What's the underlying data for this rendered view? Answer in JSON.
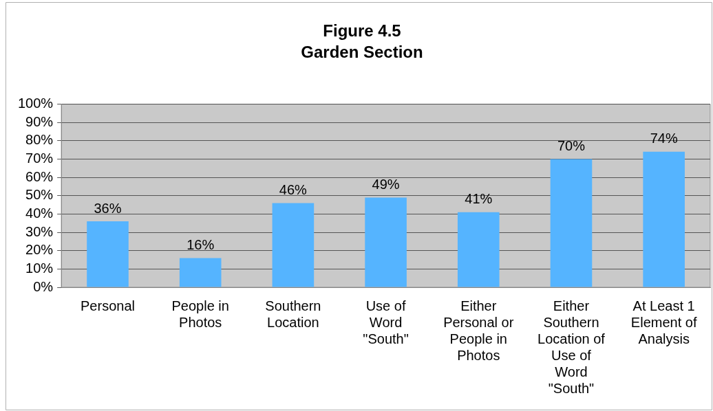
{
  "chart_data": {
    "type": "bar",
    "title": "Figure 4.5",
    "subtitle": "Garden Section",
    "categories": [
      "Personal",
      "People in Photos",
      "Southern Location",
      "Use of Word \"South\"",
      "Either Personal or People in Photos",
      "Either Southern Location of Use of Word \"South\"",
      "At Least 1 Element of Analysis"
    ],
    "values": [
      36,
      16,
      46,
      49,
      41,
      70,
      74
    ],
    "color": "#55b4ff",
    "ylim": [
      0,
      100
    ],
    "yticks": [
      {
        "value": 0,
        "label": "0%"
      },
      {
        "value": 10,
        "label": "10%"
      },
      {
        "value": 20,
        "label": "20%"
      },
      {
        "value": 30,
        "label": "30%"
      },
      {
        "value": 40,
        "label": "40%"
      },
      {
        "value": 50,
        "label": "50%"
      },
      {
        "value": 60,
        "label": "60%"
      },
      {
        "value": 70,
        "label": "70%"
      },
      {
        "value": 80,
        "label": "80%"
      },
      {
        "value": 90,
        "label": "90%"
      },
      {
        "value": 100,
        "label": "100%"
      }
    ],
    "grid": "y",
    "legend": false,
    "data_labels": true,
    "value_labels": [
      "36%",
      "16%",
      "46%",
      "49%",
      "41%",
      "70%",
      "74%"
    ]
  }
}
